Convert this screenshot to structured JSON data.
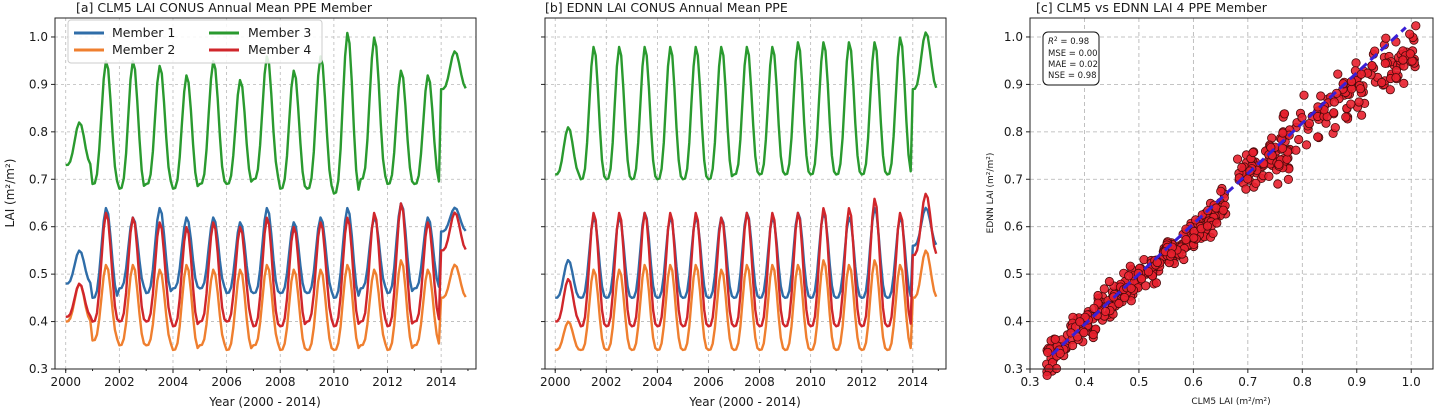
{
  "chart_data": [
    {
      "type": "line",
      "title": "[a] CLM5 LAI CONUS Annual Mean PPE Member",
      "xlabel": "Year (2000 - 2014)",
      "ylabel": "LAI (m²/m²)",
      "xlim": [
        1999.6,
        2015.3
      ],
      "ylim": [
        0.3,
        1.04
      ],
      "xticks": [
        "2000",
        "2002",
        "2004",
        "2006",
        "2008",
        "2010",
        "2012",
        "2014"
      ],
      "yticks": [
        "0.3",
        "0.4",
        "0.5",
        "0.6",
        "0.7",
        "0.8",
        "0.9",
        "1.0"
      ],
      "grid": true,
      "legend": "top-left",
      "time_step": "monthly",
      "start_year": 2000,
      "series": [
        {
          "name": "Member 1",
          "color": "#2f6da8",
          "peaks": [
            0.55,
            0.64,
            0.62,
            0.64,
            0.62,
            0.62,
            0.61,
            0.64,
            0.61,
            0.62,
            0.64,
            0.62,
            0.65,
            0.62,
            0.64
          ],
          "troughs": [
            0.48,
            0.45,
            0.47,
            0.46,
            0.47,
            0.47,
            0.46,
            0.46,
            0.46,
            0.46,
            0.45,
            0.47,
            0.46,
            0.47,
            0.59
          ]
        },
        {
          "name": "Member 2",
          "color": "#ef7f2f",
          "peaks": [
            0.48,
            0.52,
            0.52,
            0.51,
            0.52,
            0.51,
            0.51,
            0.52,
            0.51,
            0.51,
            0.52,
            0.51,
            0.53,
            0.51,
            0.52
          ],
          "troughs": [
            0.4,
            0.36,
            0.35,
            0.35,
            0.34,
            0.35,
            0.34,
            0.35,
            0.34,
            0.34,
            0.34,
            0.35,
            0.34,
            0.35,
            0.45
          ]
        },
        {
          "name": "Member 3",
          "color": "#2a9a2f",
          "peaks": [
            0.82,
            0.95,
            0.95,
            0.94,
            0.92,
            0.95,
            0.91,
            0.96,
            0.93,
            0.96,
            1.01,
            1.0,
            0.93,
            0.92,
            0.97
          ],
          "troughs": [
            0.73,
            0.69,
            0.68,
            0.69,
            0.68,
            0.69,
            0.69,
            0.7,
            0.68,
            0.68,
            0.67,
            0.7,
            0.69,
            0.69,
            0.89
          ]
        },
        {
          "name": "Member 4",
          "color": "#d0262b",
          "peaks": [
            0.48,
            0.63,
            0.62,
            0.61,
            0.6,
            0.61,
            0.6,
            0.62,
            0.6,
            0.61,
            0.62,
            0.63,
            0.65,
            0.61,
            0.63
          ],
          "troughs": [
            0.41,
            0.4,
            0.4,
            0.4,
            0.39,
            0.4,
            0.4,
            0.39,
            0.39,
            0.4,
            0.39,
            0.4,
            0.39,
            0.4,
            0.55
          ]
        }
      ]
    },
    {
      "type": "line",
      "title": "[b] EDNN LAI CONUS Annual Mean PPE",
      "xlabel": "Year (2000 - 2014)",
      "ylabel": "",
      "xlim": [
        1999.6,
        2015.3
      ],
      "ylim": [
        0.3,
        1.04
      ],
      "xticks": [
        "2000",
        "2002",
        "2004",
        "2006",
        "2008",
        "2010",
        "2012",
        "2014"
      ],
      "yticks": [],
      "grid": true,
      "legend": "none",
      "time_step": "monthly",
      "start_year": 2000,
      "series": [
        {
          "name": "Member 1",
          "color": "#2f6da8",
          "peaks": [
            0.53,
            0.62,
            0.62,
            0.63,
            0.62,
            0.62,
            0.62,
            0.63,
            0.62,
            0.63,
            0.63,
            0.62,
            0.64,
            0.62,
            0.64
          ],
          "troughs": [
            0.45,
            0.45,
            0.45,
            0.45,
            0.45,
            0.45,
            0.45,
            0.45,
            0.45,
            0.45,
            0.45,
            0.45,
            0.45,
            0.45,
            0.56
          ]
        },
        {
          "name": "Member 2",
          "color": "#ef7f2f",
          "peaks": [
            0.4,
            0.51,
            0.51,
            0.52,
            0.52,
            0.52,
            0.51,
            0.52,
            0.52,
            0.52,
            0.53,
            0.52,
            0.53,
            0.52,
            0.55
          ],
          "troughs": [
            0.34,
            0.34,
            0.34,
            0.34,
            0.34,
            0.34,
            0.34,
            0.34,
            0.34,
            0.34,
            0.34,
            0.34,
            0.34,
            0.34,
            0.45
          ]
        },
        {
          "name": "Member 3",
          "color": "#2a9a2f",
          "peaks": [
            0.81,
            0.98,
            0.98,
            0.98,
            0.98,
            0.98,
            0.98,
            0.98,
            0.98,
            0.99,
            0.99,
            0.99,
            0.99,
            1.0,
            1.01
          ],
          "troughs": [
            0.71,
            0.7,
            0.7,
            0.7,
            0.7,
            0.7,
            0.7,
            0.71,
            0.71,
            0.71,
            0.71,
            0.71,
            0.71,
            0.71,
            0.89
          ]
        },
        {
          "name": "Member 4",
          "color": "#d0262b",
          "peaks": [
            0.49,
            0.63,
            0.63,
            0.63,
            0.63,
            0.63,
            0.62,
            0.63,
            0.63,
            0.63,
            0.64,
            0.64,
            0.66,
            0.63,
            0.67
          ],
          "troughs": [
            0.4,
            0.39,
            0.39,
            0.39,
            0.39,
            0.39,
            0.39,
            0.39,
            0.39,
            0.39,
            0.39,
            0.39,
            0.39,
            0.39,
            0.54
          ]
        }
      ]
    },
    {
      "type": "scatter",
      "title": "[c] CLM5 vs EDNN LAI 4 PPE Member",
      "xlabel": "CLM5 LAI (m²/m²)",
      "ylabel": "EDNN LAI (m²/m²)",
      "xlim": [
        0.3,
        1.04
      ],
      "ylim": [
        0.3,
        1.04
      ],
      "xticks": [
        "0.3",
        "0.4",
        "0.5",
        "0.6",
        "0.7",
        "0.8",
        "0.9",
        "1.0"
      ],
      "yticks": [
        "0.3",
        "0.4",
        "0.5",
        "0.6",
        "0.7",
        "0.8",
        "0.9",
        "1.0"
      ],
      "grid": true,
      "point_color": "#e8202e",
      "point_edge": "#4a0a0a",
      "line_color": "#3a1fd6",
      "stats_box": [
        "R² = 0.98",
        "MSE = 0.00",
        "MAE = 0.02",
        "NSE = 0.98"
      ],
      "stats_r2_prefix": "R",
      "stats_r2_sup": "2",
      "stats_r2_suffix": " = 0.98",
      "clusters": [
        {
          "x_range": [
            0.33,
            0.66
          ],
          "slope": 0.98,
          "offset": 0.0,
          "spread": 0.018,
          "count": 300
        },
        {
          "x_range": [
            0.68,
            0.78
          ],
          "slope": 0.55,
          "offset": 0.33,
          "spread": 0.022,
          "count": 70
        },
        {
          "x_range": [
            0.74,
            1.01
          ],
          "slope": 0.82,
          "offset": 0.15,
          "spread": 0.028,
          "count": 150
        }
      ],
      "fit_line": {
        "x": [
          0.34,
          0.99
        ],
        "y": [
          0.33,
          1.02
        ]
      }
    }
  ]
}
